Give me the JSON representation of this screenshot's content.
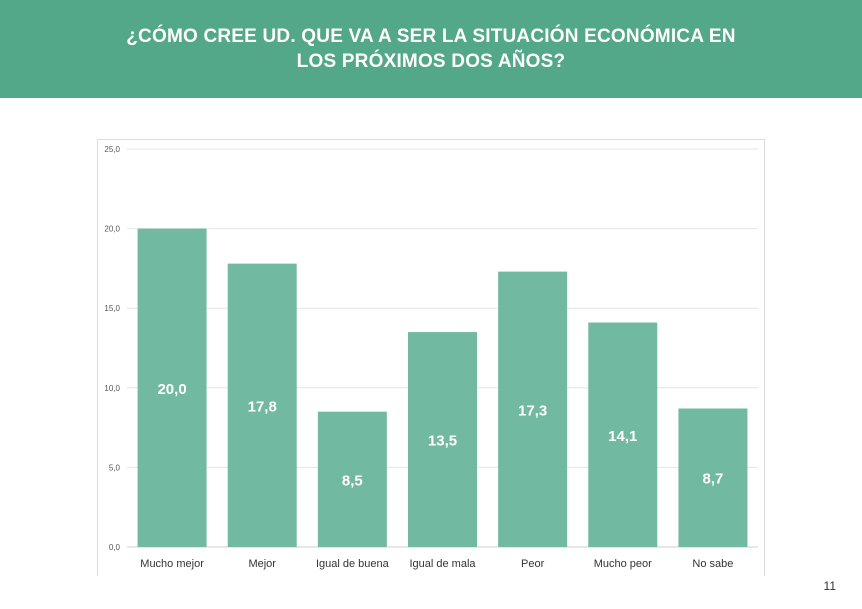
{
  "header": {
    "title": "¿CÓMO CREE UD. QUE VA A SER LA SITUACIÓN ECONÓMICA EN LOS PRÓXIMOS DOS AÑOS?"
  },
  "page_number": "11",
  "colors": {
    "header_bg": "#52a888",
    "bar_fill": "#72b9a2",
    "bar_label": "#ffffff",
    "gridline": "#e4e4e4"
  },
  "chart_data": {
    "type": "bar",
    "categories": [
      "Mucho mejor",
      "Mejor",
      "Igual de buena",
      "Igual de mala",
      "Peor",
      "Mucho peor",
      "No sabe"
    ],
    "values": [
      20.0,
      17.8,
      8.5,
      13.5,
      17.3,
      14.1,
      8.7
    ],
    "value_labels": [
      "20,0",
      "17,8",
      "8,5",
      "13,5",
      "17,3",
      "14,1",
      "8,7"
    ],
    "y_ticks": [
      0,
      5,
      10,
      15,
      20,
      25
    ],
    "y_tick_labels": [
      "0,0",
      "5,0",
      "10,0",
      "15,0",
      "20,0",
      "25,0"
    ],
    "ylim": [
      0,
      25
    ],
    "grid": true,
    "legend": "none",
    "title": "",
    "xlabel": "",
    "ylabel": ""
  }
}
